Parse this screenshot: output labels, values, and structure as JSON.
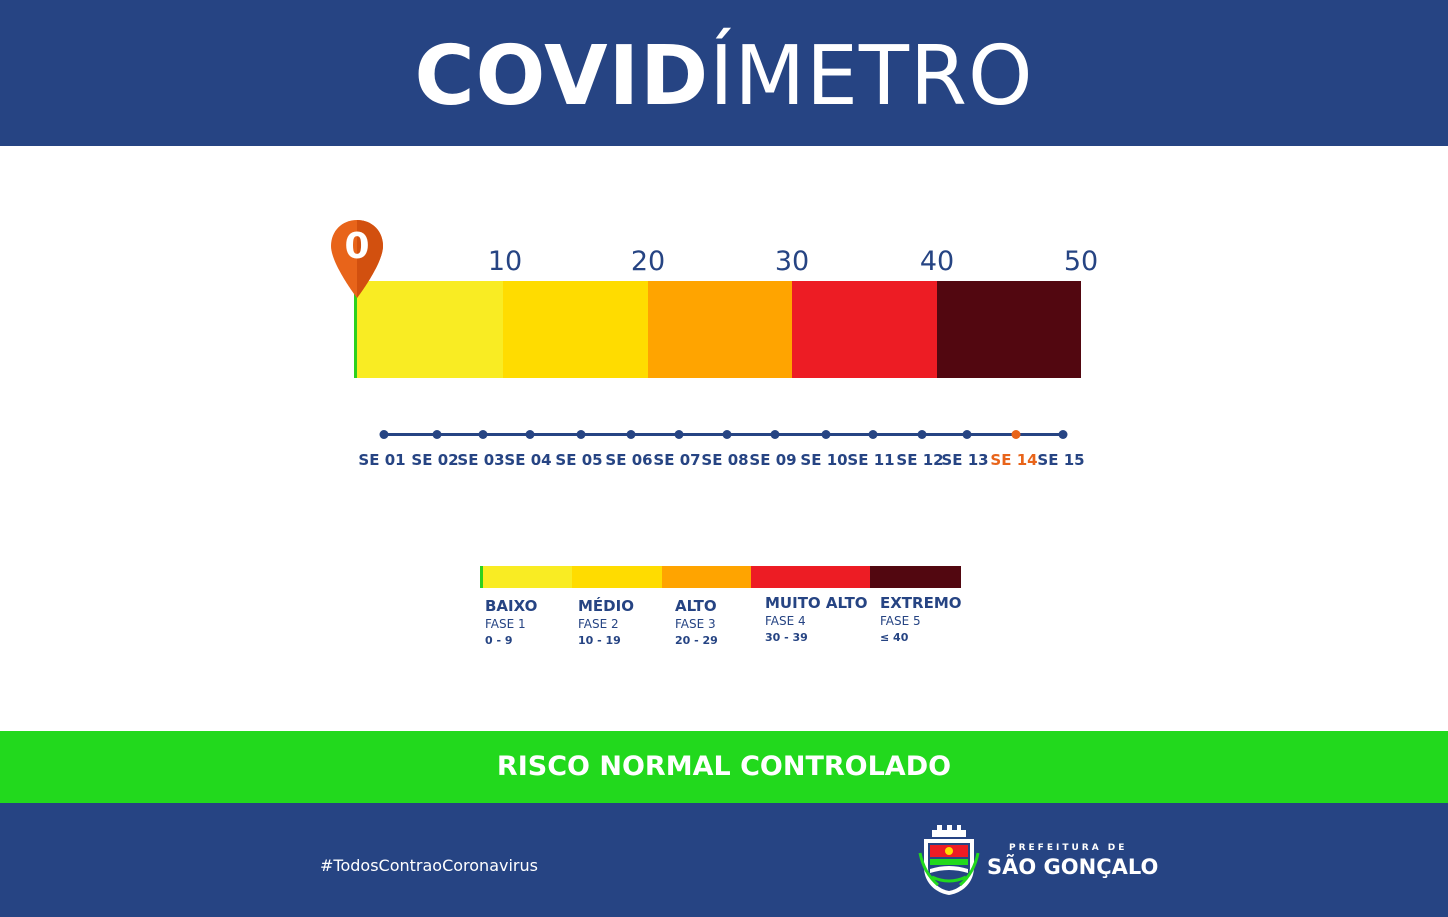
{
  "header": {
    "title_bold": "COVID",
    "title_light": "ÍMETRO",
    "color": "#264483"
  },
  "meter": {
    "current_value": "0",
    "pin_color": "#e8641a",
    "scale_labels": [
      "10",
      "20",
      "30",
      "40",
      "50"
    ],
    "segment_colors": [
      "#f9ec23",
      "#ffdc00",
      "#ffa400",
      "#ed1c24",
      "#520710"
    ]
  },
  "timeline": {
    "weeks": [
      "SE 01",
      "SE 02",
      "SE 03",
      "SE 04",
      "SE 05",
      "SE 06",
      "SE 07",
      "SE 08",
      "SE 09",
      "SE 10",
      "SE 11",
      "SE 12",
      "SE 13",
      "SE 14",
      "SE 15"
    ],
    "current_week": "SE 14",
    "highlight_color": "#e8641a",
    "base_color": "#264483"
  },
  "legend": [
    {
      "name": "BAIXO",
      "phase": "FASE 1",
      "range": "0 - 9",
      "color": "#f9ec23"
    },
    {
      "name": "MÉDIO",
      "phase": "FASE 2",
      "range": "10 - 19",
      "color": "#ffdc00"
    },
    {
      "name": "ALTO",
      "phase": "FASE 3",
      "range": "20 - 29",
      "color": "#ffa400"
    },
    {
      "name": "MUITO ALTO",
      "phase": "FASE 4",
      "range": "30 - 39",
      "color": "#ed1c24"
    },
    {
      "name": "EXTREMO",
      "phase": "FASE 5",
      "range": "≤ 40",
      "color": "#520710"
    }
  ],
  "status": {
    "text": "RISCO NORMAL CONTROLADO",
    "color": "#22d91d"
  },
  "footer": {
    "hashtag": "#TodosContraoCoronavirus",
    "org_line1": "PREFEITURA DE",
    "org_line2": "SÃO GONÇALO",
    "crest_icon": "sao-goncalo-coat-of-arms-icon"
  }
}
